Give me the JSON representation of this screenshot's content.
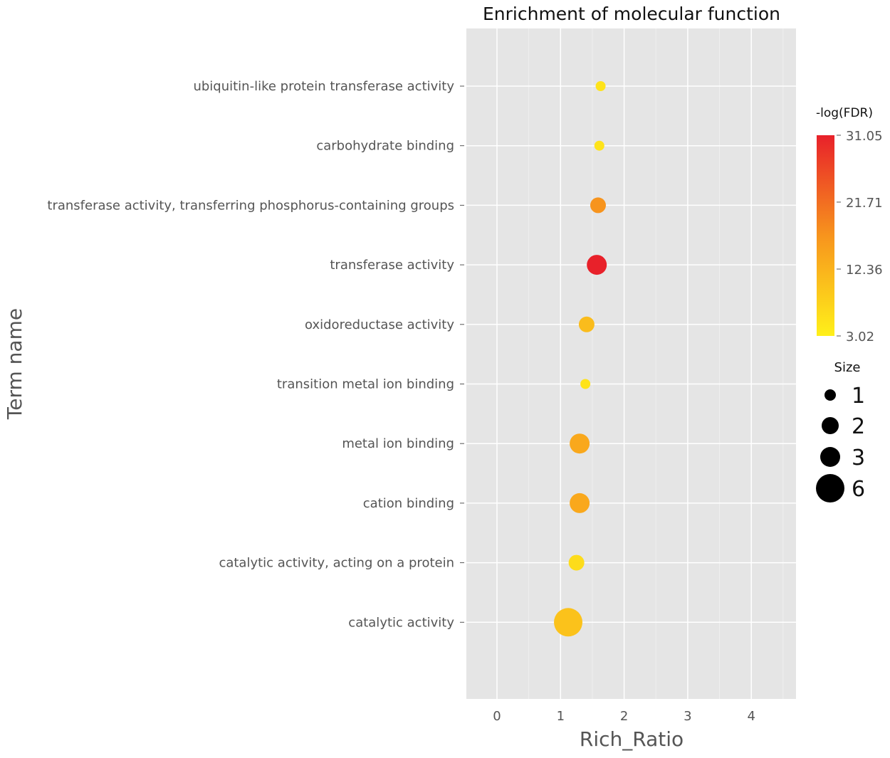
{
  "chart_data": {
    "type": "scatter",
    "title": "Enrichment of molecular function",
    "xlabel": "Rich_Ratio",
    "ylabel": "Term name",
    "xlim": [
      -0.5,
      4.7
    ],
    "xticks": [
      "0",
      "1",
      "2",
      "3",
      "4"
    ],
    "grid": true,
    "categories": [
      "ubiquitin-like protein transferase activity",
      "carbohydrate binding",
      "transferase activity, transferring phosphorus-containing groups",
      "transferase activity",
      "oxidoreductase activity",
      "transition metal ion binding",
      "metal ion binding",
      "cation binding",
      "catalytic activity, acting on a protein",
      "catalytic activity"
    ],
    "rich_ratio": [
      1.63,
      1.61,
      1.59,
      1.57,
      1.41,
      1.39,
      1.3,
      1.3,
      1.25,
      1.12
    ],
    "size": [
      1,
      1,
      2,
      3,
      2,
      1,
      3,
      3,
      2,
      6
    ],
    "neg_log_fdr": [
      5,
      5,
      17,
      31.05,
      11,
      5,
      14,
      14,
      6,
      10
    ],
    "color_legend": {
      "title": "-log(FDR)",
      "ticks": [
        "31.05",
        "21.71",
        "12.36",
        "3.02"
      ],
      "min": 3.02,
      "max": 31.05,
      "colors": [
        "#fff01a",
        "#f7941d",
        "#e8212a"
      ]
    },
    "size_legend": {
      "title": "Size",
      "values": [
        "1",
        "2",
        "3",
        "6"
      ]
    },
    "legend_placement": "right"
  }
}
